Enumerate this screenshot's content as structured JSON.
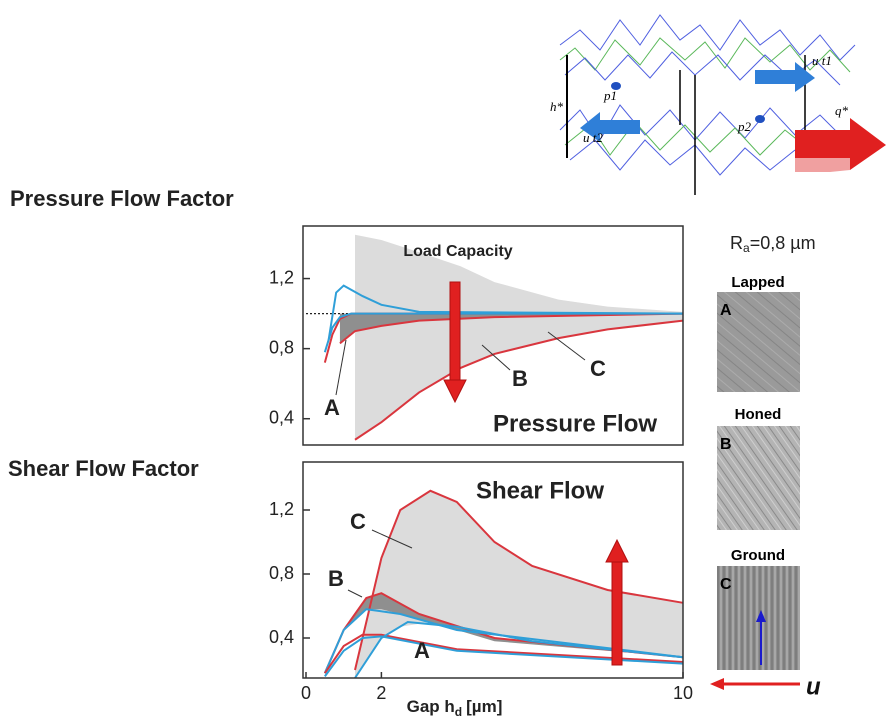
{
  "chart_data": [
    {
      "type": "line",
      "title": "Pressure Flow Factor",
      "xlim": [
        0,
        10
      ],
      "ylim": [
        0.25,
        1.5
      ],
      "yticks": [
        {
          "value": 1.2,
          "label": "1,2"
        },
        {
          "value": 0.8,
          "label": "0,8"
        },
        {
          "value": 0.4,
          "label": "0,4"
        }
      ],
      "reference_line": 1,
      "bands": [
        {
          "color": "#dcdcdc",
          "x": [
            1.3,
            2,
            3,
            4.1,
            5,
            6.7,
            8,
            10
          ],
          "upper": [
            1.45,
            1.42,
            1.35,
            1.27,
            1.18,
            1.08,
            1.04,
            1.01
          ],
          "lower": [
            0.28,
            0.38,
            0.55,
            0.69,
            0.77,
            0.86,
            0.91,
            0.96
          ]
        },
        {
          "color": "#8f8f8f",
          "x": [
            0.9,
            1.3,
            2,
            3,
            5,
            10
          ],
          "upper": [
            1.0,
            1.0,
            1.0,
            1.0,
            1.0,
            1.0
          ],
          "lower": [
            0.83,
            0.9,
            0.93,
            0.96,
            0.98,
            1.0
          ]
        }
      ],
      "series": [
        {
          "color": "#d9363e",
          "x": [
            1.3,
            2,
            3,
            4.1,
            5,
            6.7,
            8,
            10
          ],
          "values": [
            0.28,
            0.38,
            0.55,
            0.69,
            0.77,
            0.86,
            0.91,
            0.96
          ]
        },
        {
          "color": "#d9363e",
          "x": [
            0.9,
            1.3,
            2,
            3,
            5,
            10
          ],
          "values": [
            0.83,
            0.9,
            0.93,
            0.96,
            0.98,
            1.0
          ]
        },
        {
          "color": "#d9363e",
          "x": [
            0.5,
            0.7,
            0.9,
            1.2,
            2,
            10
          ],
          "values": [
            0.72,
            0.88,
            0.97,
            1.0,
            1.0,
            1.0
          ]
        },
        {
          "color": "#2f9fd8",
          "x": [
            0.5,
            0.7,
            0.9,
            1.2,
            2,
            10
          ],
          "values": [
            0.78,
            0.92,
            0.98,
            1.0,
            1.0,
            1.0
          ]
        },
        {
          "color": "#2f9fd8",
          "x": [
            0.6,
            0.8,
            1.0,
            1.5,
            2,
            3,
            10
          ],
          "values": [
            0.85,
            1.12,
            1.16,
            1.1,
            1.05,
            1.01,
            1.0
          ]
        }
      ],
      "annotations": [
        "Load Capacity",
        "Pressure Flow",
        "A",
        "B",
        "C"
      ]
    },
    {
      "type": "line",
      "title": "Shear Flow Factor",
      "xlim": [
        0,
        10
      ],
      "ylim": [
        0.15,
        1.5
      ],
      "yticks": [
        {
          "value": 1.2,
          "label": "1,2"
        },
        {
          "value": 0.8,
          "label": "0,8"
        },
        {
          "value": 0.4,
          "label": "0,4"
        }
      ],
      "xticks": [
        0,
        2,
        10
      ],
      "xlabel": "Gap h",
      "xlabel_sub": "d",
      "xlabel_unit": "[µm]",
      "bands": [
        {
          "color": "#dcdcdc",
          "x": [
            1.3,
            2,
            2.5,
            3.3,
            4,
            5,
            6,
            8,
            10
          ],
          "upper": [
            0.2,
            0.9,
            1.2,
            1.32,
            1.25,
            1.0,
            0.85,
            0.7,
            0.62
          ],
          "lower": [
            0.15,
            0.4,
            0.47,
            0.5,
            0.47,
            0.43,
            0.38,
            0.32,
            0.28
          ]
        },
        {
          "color": "#8f8f8f",
          "x": [
            1,
            1.6,
            2,
            3,
            5,
            10
          ],
          "upper": [
            0.45,
            0.65,
            0.68,
            0.55,
            0.4,
            0.28
          ],
          "lower": [
            0.45,
            0.58,
            0.58,
            0.52,
            0.38,
            0.28
          ]
        }
      ],
      "series": [
        {
          "color": "#d9363e",
          "x": [
            1.3,
            2,
            2.5,
            3.3,
            4,
            5,
            6,
            8,
            10
          ],
          "values": [
            0.2,
            0.9,
            1.2,
            1.32,
            1.25,
            1.0,
            0.85,
            0.7,
            0.62
          ]
        },
        {
          "color": "#d9363e",
          "x": [
            0.5,
            1,
            1.6,
            2,
            3,
            5,
            10
          ],
          "values": [
            0.18,
            0.45,
            0.65,
            0.68,
            0.55,
            0.4,
            0.28
          ]
        },
        {
          "color": "#2f9fd8",
          "x": [
            0.5,
            1,
            1.6,
            2.5,
            4,
            10
          ],
          "values": [
            0.18,
            0.45,
            0.58,
            0.55,
            0.45,
            0.28
          ]
        },
        {
          "color": "#d9363e",
          "x": [
            0.5,
            1,
            1.5,
            2,
            4,
            10
          ],
          "values": [
            0.18,
            0.35,
            0.42,
            0.42,
            0.33,
            0.25
          ]
        },
        {
          "color": "#2f9fd8",
          "x": [
            0.5,
            1,
            1.5,
            2,
            4,
            10
          ],
          "values": [
            0.16,
            0.32,
            0.4,
            0.41,
            0.32,
            0.24
          ]
        },
        {
          "color": "#2f9fd8",
          "x": [
            1.3,
            2,
            2.7,
            4,
            6,
            10
          ],
          "values": [
            0.15,
            0.4,
            0.5,
            0.47,
            0.38,
            0.28
          ]
        }
      ],
      "annotations": [
        "Shear Flow",
        "C",
        "B",
        "A"
      ]
    }
  ],
  "diagram": {
    "labels": [
      "h*",
      "p1",
      "p2",
      "u t1",
      "u t2",
      "q*"
    ]
  },
  "samples": {
    "roughness": "R",
    "roughness_sub": "a",
    "roughness_value": "=0,8 µm",
    "items": [
      {
        "label": "Lapped",
        "letter": "A"
      },
      {
        "label": "Honed",
        "letter": "B"
      },
      {
        "label": "Ground",
        "letter": "C"
      }
    ],
    "direction": "u"
  }
}
